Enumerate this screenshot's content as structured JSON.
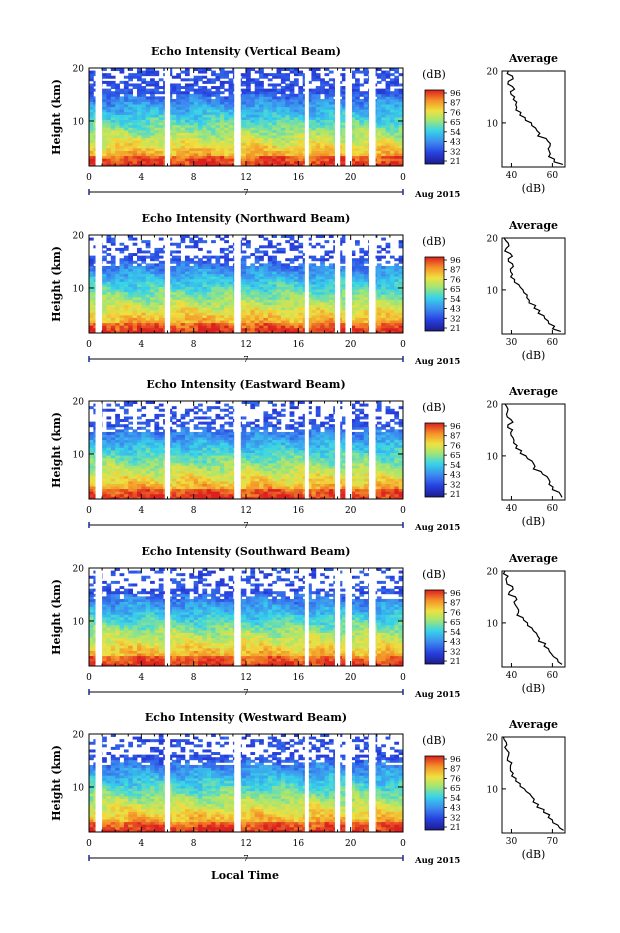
{
  "chart_data": [
    {
      "type": "heatmap",
      "title": "Echo Intensity (Vertical Beam)",
      "ylabel": "Height (km)",
      "ylim": [
        1.5,
        20
      ],
      "yticks": [
        20,
        10
      ],
      "xlim": [
        0,
        24
      ],
      "xticks": [
        "0",
        "4",
        "8",
        "12",
        "16",
        "20",
        "0"
      ],
      "date_label": "Aug 2015",
      "day_label": "7",
      "colorbar": {
        "unit": "(dB)",
        "ticks": [
          "96",
          "87",
          "76",
          "65",
          "54",
          "43",
          "32",
          "21"
        ]
      },
      "gaps": [
        [
          0.5,
          1.0
        ],
        [
          5.8,
          6.2
        ],
        [
          11.1,
          11.6
        ],
        [
          16.5,
          16.8
        ],
        [
          18.8,
          19.2
        ],
        [
          19.6,
          20.1
        ],
        [
          21.4,
          21.9
        ]
      ],
      "profile": {
        "title": "Average",
        "xlabel": "(dB)",
        "xlim": [
          35,
          65
        ],
        "xticks": [
          "40",
          "60"
        ],
        "heights": [
          2,
          3,
          4,
          5,
          6,
          7,
          8,
          9,
          10,
          11,
          12,
          13,
          14,
          15,
          16,
          17,
          18,
          19,
          20
        ],
        "values": [
          64,
          60,
          58,
          57,
          58,
          56,
          53,
          51,
          49,
          46,
          44,
          42,
          42,
          41,
          39,
          40,
          38,
          40,
          38
        ]
      }
    },
    {
      "type": "heatmap",
      "title": "Echo Intensity (Northward Beam)",
      "ylabel": "Height (km)",
      "ylim": [
        1.5,
        20
      ],
      "yticks": [
        20,
        10
      ],
      "xlim": [
        0,
        24
      ],
      "xticks": [
        "0",
        "4",
        "8",
        "12",
        "16",
        "20",
        "0"
      ],
      "date_label": "Aug 2015",
      "day_label": "7",
      "colorbar": {
        "unit": "(dB)",
        "ticks": [
          "96",
          "87",
          "76",
          "65",
          "54",
          "43",
          "32",
          "21"
        ]
      },
      "gaps": [
        [
          0.5,
          1.0
        ],
        [
          5.8,
          6.2
        ],
        [
          11.1,
          11.6
        ],
        [
          16.5,
          16.8
        ],
        [
          18.8,
          19.2
        ],
        [
          19.6,
          20.1
        ],
        [
          21.4,
          21.9
        ]
      ],
      "profile": {
        "title": "Average",
        "xlabel": "(dB)",
        "xlim": [
          30,
          60
        ],
        "xticks": [
          "30",
          "60"
        ],
        "heights": [
          2,
          3,
          4,
          5,
          6,
          7,
          8,
          9,
          10,
          11,
          12,
          13,
          14,
          15,
          16,
          17,
          18,
          19,
          20
        ],
        "values": [
          58,
          55,
          52,
          50,
          48,
          46,
          43,
          42,
          40,
          38,
          36,
          35,
          34,
          35,
          33,
          34,
          32,
          33,
          31
        ]
      }
    },
    {
      "type": "heatmap",
      "title": "Echo Intensity (Eastward Beam)",
      "ylabel": "Height (km)",
      "ylim": [
        1.5,
        20
      ],
      "yticks": [
        20,
        10
      ],
      "xlim": [
        0,
        24
      ],
      "xticks": [
        "0",
        "4",
        "8",
        "12",
        "16",
        "20",
        "0"
      ],
      "date_label": "Aug 2015",
      "day_label": "7",
      "colorbar": {
        "unit": "(dB)",
        "ticks": [
          "96",
          "87",
          "76",
          "65",
          "54",
          "43",
          "32",
          "21"
        ]
      },
      "gaps": [
        [
          0.5,
          1.0
        ],
        [
          5.8,
          6.2
        ],
        [
          11.1,
          11.6
        ],
        [
          16.5,
          16.8
        ],
        [
          18.8,
          19.2
        ],
        [
          19.6,
          20.1
        ],
        [
          21.4,
          21.9
        ]
      ],
      "profile": {
        "title": "Average",
        "xlabel": "(dB)",
        "xlim": [
          30,
          72
        ],
        "xticks": [
          "40",
          "60"
        ],
        "heights": [
          2,
          3,
          4,
          5,
          6,
          7,
          8,
          9,
          10,
          11,
          12,
          13,
          14,
          15,
          16,
          17,
          18,
          19,
          20
        ],
        "values": [
          70,
          68,
          64,
          62,
          60,
          56,
          52,
          50,
          46,
          43,
          40,
          38,
          36,
          37,
          34,
          36,
          33,
          34,
          32
        ]
      }
    },
    {
      "type": "heatmap",
      "title": "Echo Intensity (Southward Beam)",
      "ylabel": "Height (km)",
      "ylim": [
        1.5,
        20
      ],
      "yticks": [
        20,
        10
      ],
      "xlim": [
        0,
        24
      ],
      "xticks": [
        "0",
        "4",
        "8",
        "12",
        "16",
        "20",
        "0"
      ],
      "date_label": "Aug 2015",
      "day_label": "7",
      "colorbar": {
        "unit": "(dB)",
        "ticks": [
          "96",
          "87",
          "76",
          "65",
          "54",
          "43",
          "32",
          "21"
        ]
      },
      "gaps": [
        [
          0.5,
          1.0
        ],
        [
          5.8,
          6.2
        ],
        [
          11.1,
          11.6
        ],
        [
          16.5,
          16.8
        ],
        [
          18.8,
          19.2
        ],
        [
          19.6,
          20.1
        ],
        [
          21.4,
          21.9
        ]
      ],
      "profile": {
        "title": "Average",
        "xlabel": "(dB)",
        "xlim": [
          30,
          72
        ],
        "xticks": [
          "40",
          "60"
        ],
        "heights": [
          2,
          3,
          4,
          5,
          6,
          7,
          8,
          9,
          10,
          11,
          12,
          13,
          14,
          15,
          16,
          17,
          18,
          19,
          20
        ],
        "values": [
          70,
          67,
          63,
          61,
          59,
          55,
          53,
          50,
          47,
          44,
          41,
          40,
          38,
          39,
          35,
          37,
          33,
          34,
          32
        ]
      }
    },
    {
      "type": "heatmap",
      "title": "Echo Intensity (Westward Beam)",
      "ylabel": "Height (km)",
      "ylim": [
        1.5,
        20
      ],
      "yticks": [
        20,
        10
      ],
      "xlim": [
        0,
        24
      ],
      "xticks": [
        "0",
        "4",
        "8",
        "12",
        "16",
        "20",
        "0"
      ],
      "date_label": "Aug 2015",
      "day_label": "7",
      "colorbar": {
        "unit": "(dB)",
        "ticks": [
          "96",
          "87",
          "76",
          "65",
          "54",
          "43",
          "32",
          "21"
        ]
      },
      "gaps": [
        [
          0.5,
          1.0
        ],
        [
          5.8,
          6.2
        ],
        [
          11.1,
          11.6
        ],
        [
          16.5,
          16.8
        ],
        [
          18.8,
          19.2
        ],
        [
          19.6,
          20.1
        ],
        [
          21.4,
          21.9
        ]
      ],
      "profile": {
        "title": "Average",
        "xlabel": "(dB)",
        "xlim": [
          30,
          75
        ],
        "xticks": [
          "30",
          "70"
        ],
        "heights": [
          2,
          3,
          4,
          5,
          6,
          7,
          8,
          9,
          10,
          11,
          12,
          13,
          14,
          15,
          16,
          17,
          18,
          19,
          20
        ],
        "values": [
          74,
          70,
          66,
          64,
          60,
          56,
          53,
          50,
          46,
          43,
          40,
          38,
          36,
          37,
          34,
          35,
          32,
          33,
          31
        ]
      }
    }
  ],
  "footer": {
    "xlabel": "Local Time"
  }
}
